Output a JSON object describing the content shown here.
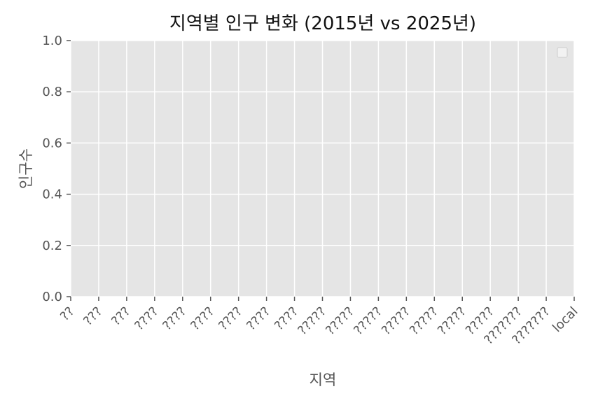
{
  "chart_data": {
    "type": "bar",
    "title": "지역별 인구 변화 (2015년 vs 2025년)",
    "xlabel": "지역",
    "ylabel": "인구수",
    "categories": [
      "??",
      "???",
      "???",
      "????",
      "????",
      "????",
      "????",
      "????",
      "????",
      "?????",
      "?????",
      "?????",
      "?????",
      "?????",
      "?????",
      "?????",
      "???????",
      "???????",
      "local"
    ],
    "series": [],
    "ylim": [
      0,
      1.0
    ],
    "yticks": [
      "0.0",
      "0.2",
      "0.4",
      "0.6",
      "0.8",
      "1.0"
    ],
    "grid": true,
    "legend": "top-right",
    "legend_entries": [],
    "colors": {
      "plot_background": "#e5e5e5",
      "grid": "#ffffff",
      "text": "#555555"
    }
  }
}
